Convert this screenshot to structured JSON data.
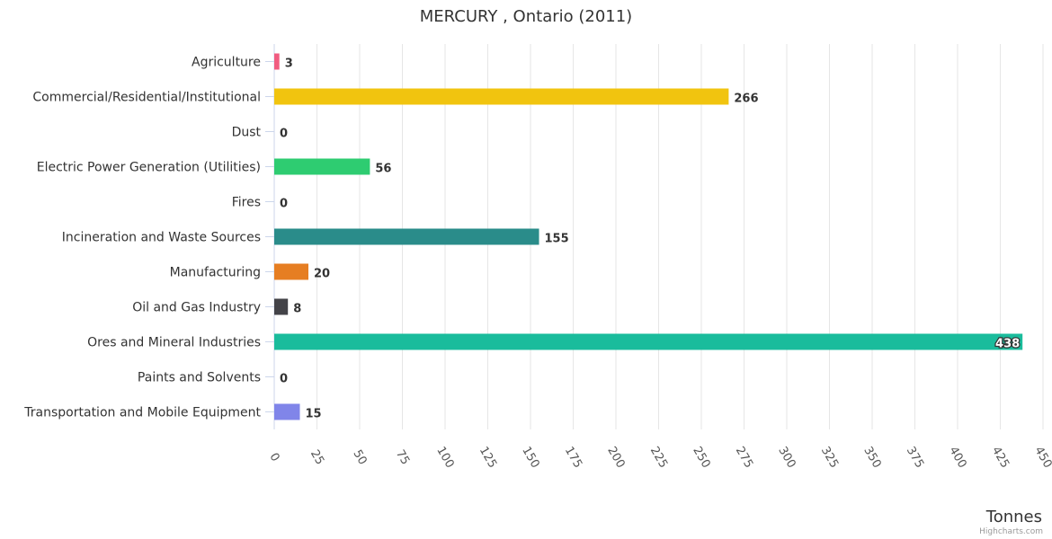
{
  "chart_data": {
    "type": "bar",
    "orientation": "horizontal",
    "title": "MERCURY , Ontario (2011)",
    "xlabel": "Tonnes",
    "ylabel": "",
    "categories": [
      "Agriculture",
      "Commercial/Residential/Institutional",
      "Dust",
      "Electric Power Generation (Utilities)",
      "Fires",
      "Incineration and Waste Sources",
      "Manufacturing",
      "Oil and Gas Industry",
      "Ores and Mineral Industries",
      "Paints and Solvents",
      "Transportation and Mobile Equipment"
    ],
    "values": [
      3,
      266,
      0,
      56,
      0,
      155,
      20,
      8,
      438,
      0,
      15
    ],
    "colors": [
      "#f15c80",
      "#f1c40f",
      "#95a5a6",
      "#2ecc71",
      "#e74c3c",
      "#2a8c8a",
      "#e67e22",
      "#434348",
      "#1abc9c",
      "#9b59b6",
      "#8085e9"
    ],
    "xlim": [
      0,
      450
    ],
    "ticks": [
      0,
      25,
      50,
      75,
      100,
      125,
      150,
      175,
      200,
      225,
      250,
      275,
      300,
      325,
      350,
      375,
      400,
      425,
      450
    ],
    "grid": true,
    "legend": "none",
    "credits": "Highcharts.com"
  }
}
